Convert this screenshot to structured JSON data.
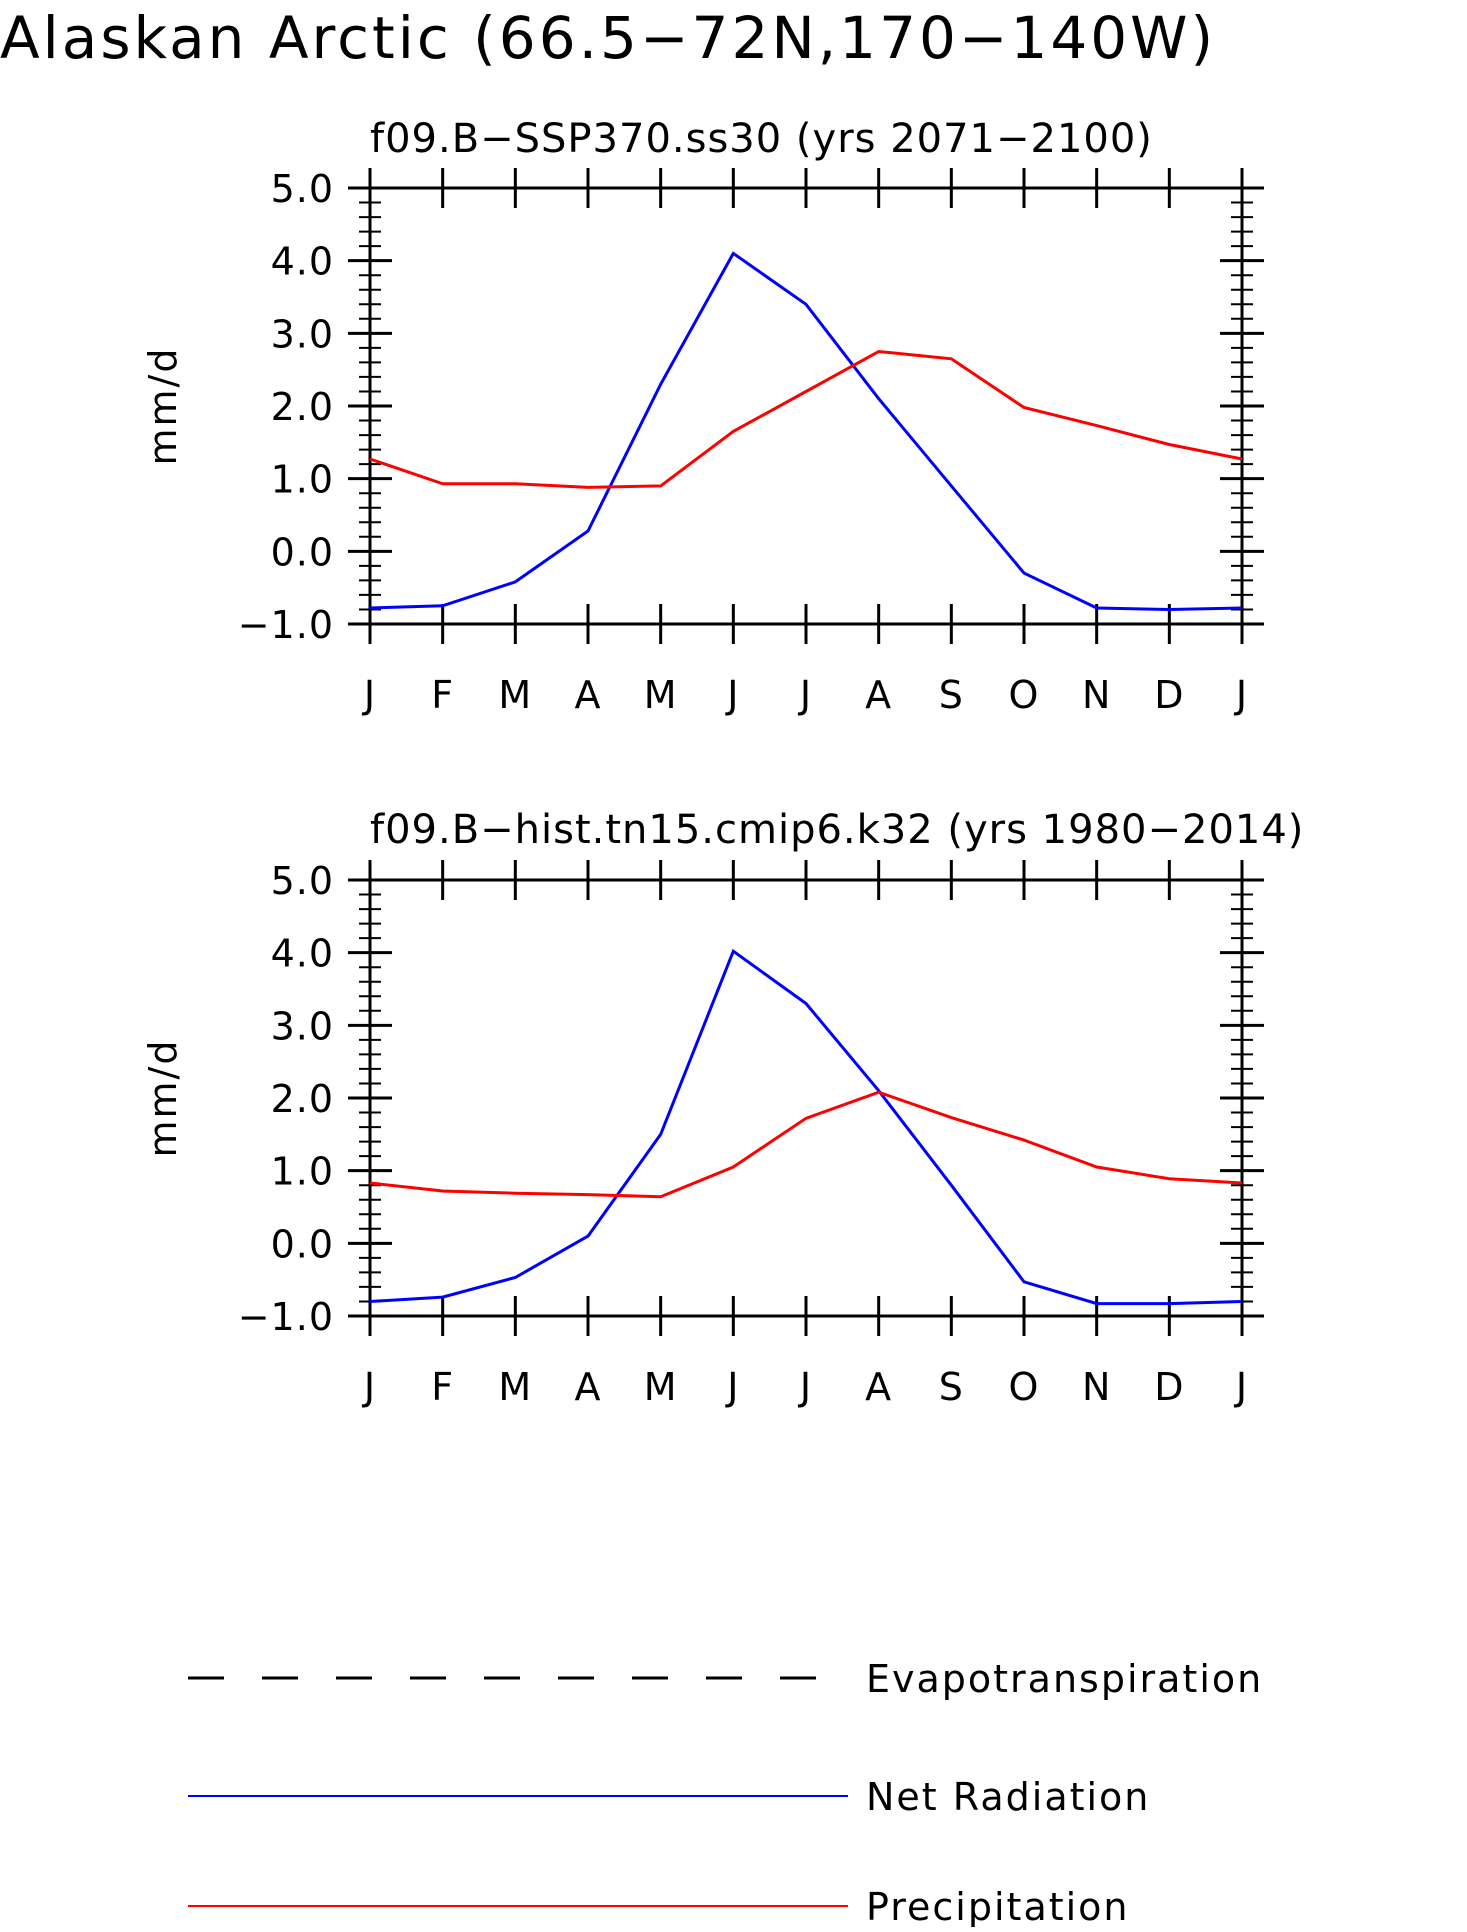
{
  "page": {
    "title": "Alaskan Arctic (66.5−72N,170−140W)"
  },
  "legend": [
    {
      "label": "Evapotranspiration",
      "color": "#000000",
      "style": "dashed"
    },
    {
      "label": "Net Radiation",
      "color": "#0000ff",
      "style": "solid"
    },
    {
      "label": "Precipitation",
      "color": "#ff0000",
      "style": "solid"
    }
  ],
  "chart_data": [
    {
      "type": "line",
      "title": "f09.B−SSP370.ss30 (yrs 2071−2100)",
      "xlabel": "",
      "ylabel": "mm/d",
      "categories": [
        "J",
        "F",
        "M",
        "A",
        "M",
        "J",
        "J",
        "A",
        "S",
        "O",
        "N",
        "D",
        "J"
      ],
      "ylim": [
        -1.0,
        5.0
      ],
      "yticks": [
        "5.0",
        "4.0",
        "3.0",
        "2.0",
        "1.0",
        "0.0",
        "−1.0"
      ],
      "series": [
        {
          "name": "Net Radiation",
          "color": "#0000ff",
          "values": [
            -0.78,
            -0.75,
            -0.42,
            0.28,
            2.3,
            4.1,
            3.4,
            2.1,
            0.9,
            -0.3,
            -0.78,
            -0.8,
            -0.78
          ]
        },
        {
          "name": "Precipitation",
          "color": "#ff0000",
          "values": [
            1.27,
            0.93,
            0.93,
            0.88,
            0.9,
            1.65,
            2.2,
            2.75,
            2.65,
            1.98,
            1.73,
            1.47,
            1.27
          ]
        }
      ]
    },
    {
      "type": "line",
      "title": "f09.B−hist.tn15.cmip6.k32 (yrs 1980−2014)",
      "xlabel": "",
      "ylabel": "mm/d",
      "categories": [
        "J",
        "F",
        "M",
        "A",
        "M",
        "J",
        "J",
        "A",
        "S",
        "O",
        "N",
        "D",
        "J"
      ],
      "ylim": [
        -1.0,
        5.0
      ],
      "yticks": [
        "5.0",
        "4.0",
        "3.0",
        "2.0",
        "1.0",
        "0.0",
        "−1.0"
      ],
      "series": [
        {
          "name": "Net Radiation",
          "color": "#0000ff",
          "values": [
            -0.8,
            -0.74,
            -0.47,
            0.1,
            1.5,
            4.02,
            3.3,
            2.1,
            0.8,
            -0.53,
            -0.83,
            -0.83,
            -0.8
          ]
        },
        {
          "name": "Precipitation",
          "color": "#ff0000",
          "values": [
            0.83,
            0.72,
            0.69,
            0.67,
            0.64,
            1.05,
            1.72,
            2.08,
            1.73,
            1.42,
            1.05,
            0.89,
            0.83
          ]
        }
      ]
    }
  ]
}
